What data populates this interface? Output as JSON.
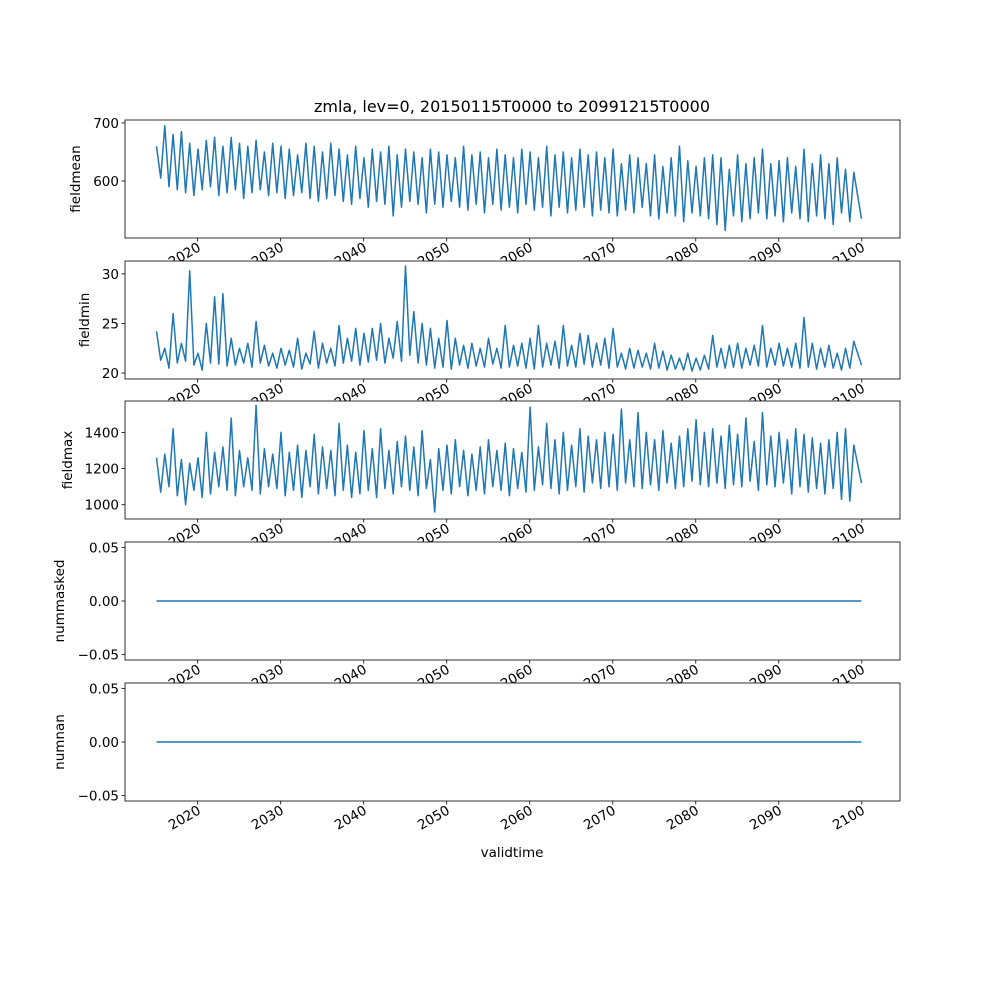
{
  "chart_data": {
    "type": "line",
    "title": "zmla, lev=0, 20150115T0000 to 20991215T0000",
    "xlabel": "validtime",
    "x_ticks": [
      "2020",
      "2030",
      "2040",
      "2050",
      "2060",
      "2070",
      "2080",
      "2090",
      "2100"
    ],
    "x_tick_values": [
      2020,
      2030,
      2040,
      2050,
      2060,
      2070,
      2080,
      2090,
      2100
    ],
    "xlim": [
      2011.25,
      2104.6
    ],
    "x_start": 2015.04,
    "x_end": 2099.96,
    "sampling": "two points per year (seasonal high, seasonal low)",
    "line_color": "#1f77b4",
    "panels": [
      {
        "ylabel": "fieldmean",
        "ylim": [
          502,
          705
        ],
        "y_ticks": [
          600,
          700
        ],
        "y_tick_labels": [
          "600",
          "700"
        ],
        "values": [
          660,
          605,
          695,
          590,
          680,
          585,
          685,
          580,
          665,
          575,
          655,
          585,
          670,
          590,
          675,
          575,
          660,
          580,
          675,
          585,
          665,
          570,
          660,
          580,
          670,
          585,
          650,
          575,
          665,
          580,
          660,
          570,
          655,
          575,
          645,
          580,
          665,
          570,
          660,
          565,
          650,
          570,
          665,
          575,
          655,
          565,
          645,
          560,
          660,
          570,
          640,
          555,
          655,
          565,
          650,
          560,
          660,
          540,
          645,
          555,
          655,
          565,
          650,
          560,
          640,
          545,
          655,
          560,
          650,
          555,
          645,
          565,
          640,
          555,
          660,
          550,
          645,
          560,
          650,
          545,
          640,
          560,
          655,
          550,
          645,
          555,
          640,
          545,
          655,
          560,
          650,
          550,
          640,
          555,
          660,
          540,
          645,
          555,
          650,
          545,
          640,
          550,
          655,
          555,
          645,
          540,
          650,
          550,
          640,
          545,
          655,
          540,
          630,
          550,
          645,
          545,
          640,
          555,
          630,
          540,
          645,
          535,
          625,
          545,
          640,
          540,
          660,
          530,
          635,
          545,
          625,
          540,
          640,
          535,
          645,
          525,
          640,
          515,
          620,
          540,
          645,
          530,
          630,
          535,
          640,
          545,
          655,
          535,
          630,
          540,
          635,
          530,
          640,
          545,
          625,
          535,
          655,
          530,
          630,
          540,
          645,
          535,
          630,
          525,
          640,
          545,
          620,
          530,
          615,
          535
        ]
      },
      {
        "ylabel": "fieldmin",
        "ylim": [
          19.4,
          31.3
        ],
        "y_ticks": [
          20,
          25,
          30
        ],
        "y_tick_labels": [
          "20",
          "25",
          "30"
        ],
        "values": [
          24.2,
          21.3,
          22.5,
          20.5,
          26.0,
          21.0,
          23.0,
          21.2,
          30.3,
          20.8,
          22.0,
          20.3,
          25.0,
          21.0,
          27.7,
          20.9,
          28.0,
          20.7,
          23.5,
          20.8,
          22.5,
          21.0,
          23.0,
          20.6,
          25.2,
          21.0,
          22.8,
          20.7,
          22.0,
          20.5,
          22.5,
          20.8,
          22.3,
          20.6,
          23.5,
          20.4,
          22.0,
          20.9,
          24.2,
          20.5,
          23.0,
          21.0,
          22.5,
          20.7,
          24.8,
          21.0,
          23.5,
          21.2,
          24.5,
          20.8,
          24.0,
          21.1,
          24.5,
          21.3,
          25.0,
          21.0,
          23.5,
          21.5,
          25.2,
          21.2,
          30.8,
          21.8,
          26.2,
          21.0,
          25.0,
          20.8,
          24.5,
          20.5,
          23.5,
          20.6,
          25.3,
          20.4,
          23.5,
          20.8,
          22.8,
          20.5,
          23.0,
          20.7,
          22.5,
          20.6,
          23.5,
          20.9,
          22.5,
          20.5,
          24.8,
          20.6,
          22.8,
          20.7,
          23.0,
          20.5,
          23.5,
          20.4,
          24.8,
          20.6,
          23.0,
          20.8,
          23.2,
          20.5,
          24.8,
          20.7,
          22.8,
          20.6,
          24.0,
          20.9,
          23.8,
          20.6,
          23.0,
          20.8,
          23.5,
          20.5,
          24.5,
          20.6,
          22.0,
          20.4,
          22.5,
          20.5,
          22.3,
          20.6,
          22.0,
          20.4,
          23.0,
          20.5,
          22.2,
          20.3,
          21.8,
          20.4,
          21.5,
          20.3,
          22.0,
          20.2,
          21.5,
          20.3,
          21.8,
          20.4,
          23.8,
          20.6,
          22.5,
          20.5,
          22.8,
          20.6,
          23.0,
          20.5,
          22.5,
          20.8,
          22.8,
          20.7,
          24.8,
          20.6,
          22.5,
          20.8,
          23.0,
          20.7,
          22.5,
          20.6,
          23.0,
          20.5,
          25.6,
          20.6,
          23.0,
          20.4,
          22.5,
          20.6,
          22.8,
          20.5,
          22.0,
          20.3,
          22.5,
          20.5,
          23.2,
          20.8
        ]
      },
      {
        "ylabel": "fieldmax",
        "ylim": [
          921,
          1574
        ],
        "y_ticks": [
          1000,
          1200,
          1400
        ],
        "y_tick_labels": [
          "1000",
          "1200",
          "1400"
        ],
        "values": [
          1260,
          1070,
          1280,
          1100,
          1420,
          1050,
          1250,
          1000,
          1230,
          1080,
          1260,
          1040,
          1400,
          1060,
          1290,
          1100,
          1320,
          1080,
          1480,
          1050,
          1300,
          1100,
          1260,
          1080,
          1550,
          1060,
          1310,
          1100,
          1280,
          1090,
          1400,
          1050,
          1290,
          1080,
          1330,
          1040,
          1300,
          1100,
          1390,
          1060,
          1320,
          1090,
          1300,
          1050,
          1450,
          1080,
          1330,
          1040,
          1290,
          1060,
          1410,
          1080,
          1310,
          1040,
          1420,
          1090,
          1300,
          1060,
          1350,
          1100,
          1380,
          1080,
          1320,
          1050,
          1410,
          1090,
          1250,
          960,
          1310,
          1080,
          1330,
          1060,
          1360,
          1100,
          1300,
          1050,
          1280,
          1080,
          1320,
          1060,
          1360,
          1100,
          1300,
          1080,
          1340,
          1050,
          1310,
          1090,
          1290,
          1070,
          1540,
          1080,
          1320,
          1110,
          1450,
          1090,
          1360,
          1060,
          1400,
          1080,
          1330,
          1100,
          1420,
          1070,
          1380,
          1120,
          1360,
          1090,
          1400,
          1100,
          1390,
          1080,
          1530,
          1120,
          1360,
          1100,
          1510,
          1090,
          1400,
          1110,
          1360,
          1080,
          1410,
          1120,
          1340,
          1090,
          1380,
          1100,
          1420,
          1130,
          1470,
          1110,
          1400,
          1100,
          1420,
          1120,
          1380,
          1090,
          1440,
          1110,
          1390,
          1100,
          1480,
          1130,
          1350,
          1080,
          1510,
          1110,
          1380,
          1100,
          1400,
          1120,
          1360,
          1060,
          1420,
          1100,
          1390,
          1070,
          1370,
          1090,
          1340,
          1060,
          1360,
          1090,
          1400,
          1030,
          1420,
          1020,
          1330,
          1120
        ]
      },
      {
        "ylabel": "nummasked",
        "ylim": [
          -0.055,
          0.055
        ],
        "y_ticks": [
          -0.05,
          0.0,
          0.05
        ],
        "y_tick_labels": [
          "−0.05",
          "0.00",
          "0.05"
        ],
        "constant": 0
      },
      {
        "ylabel": "numnan",
        "ylim": [
          -0.055,
          0.055
        ],
        "y_ticks": [
          -0.05,
          0.0,
          0.05
        ],
        "y_tick_labels": [
          "−0.05",
          "0.00",
          "0.05"
        ],
        "constant": 0
      }
    ]
  }
}
